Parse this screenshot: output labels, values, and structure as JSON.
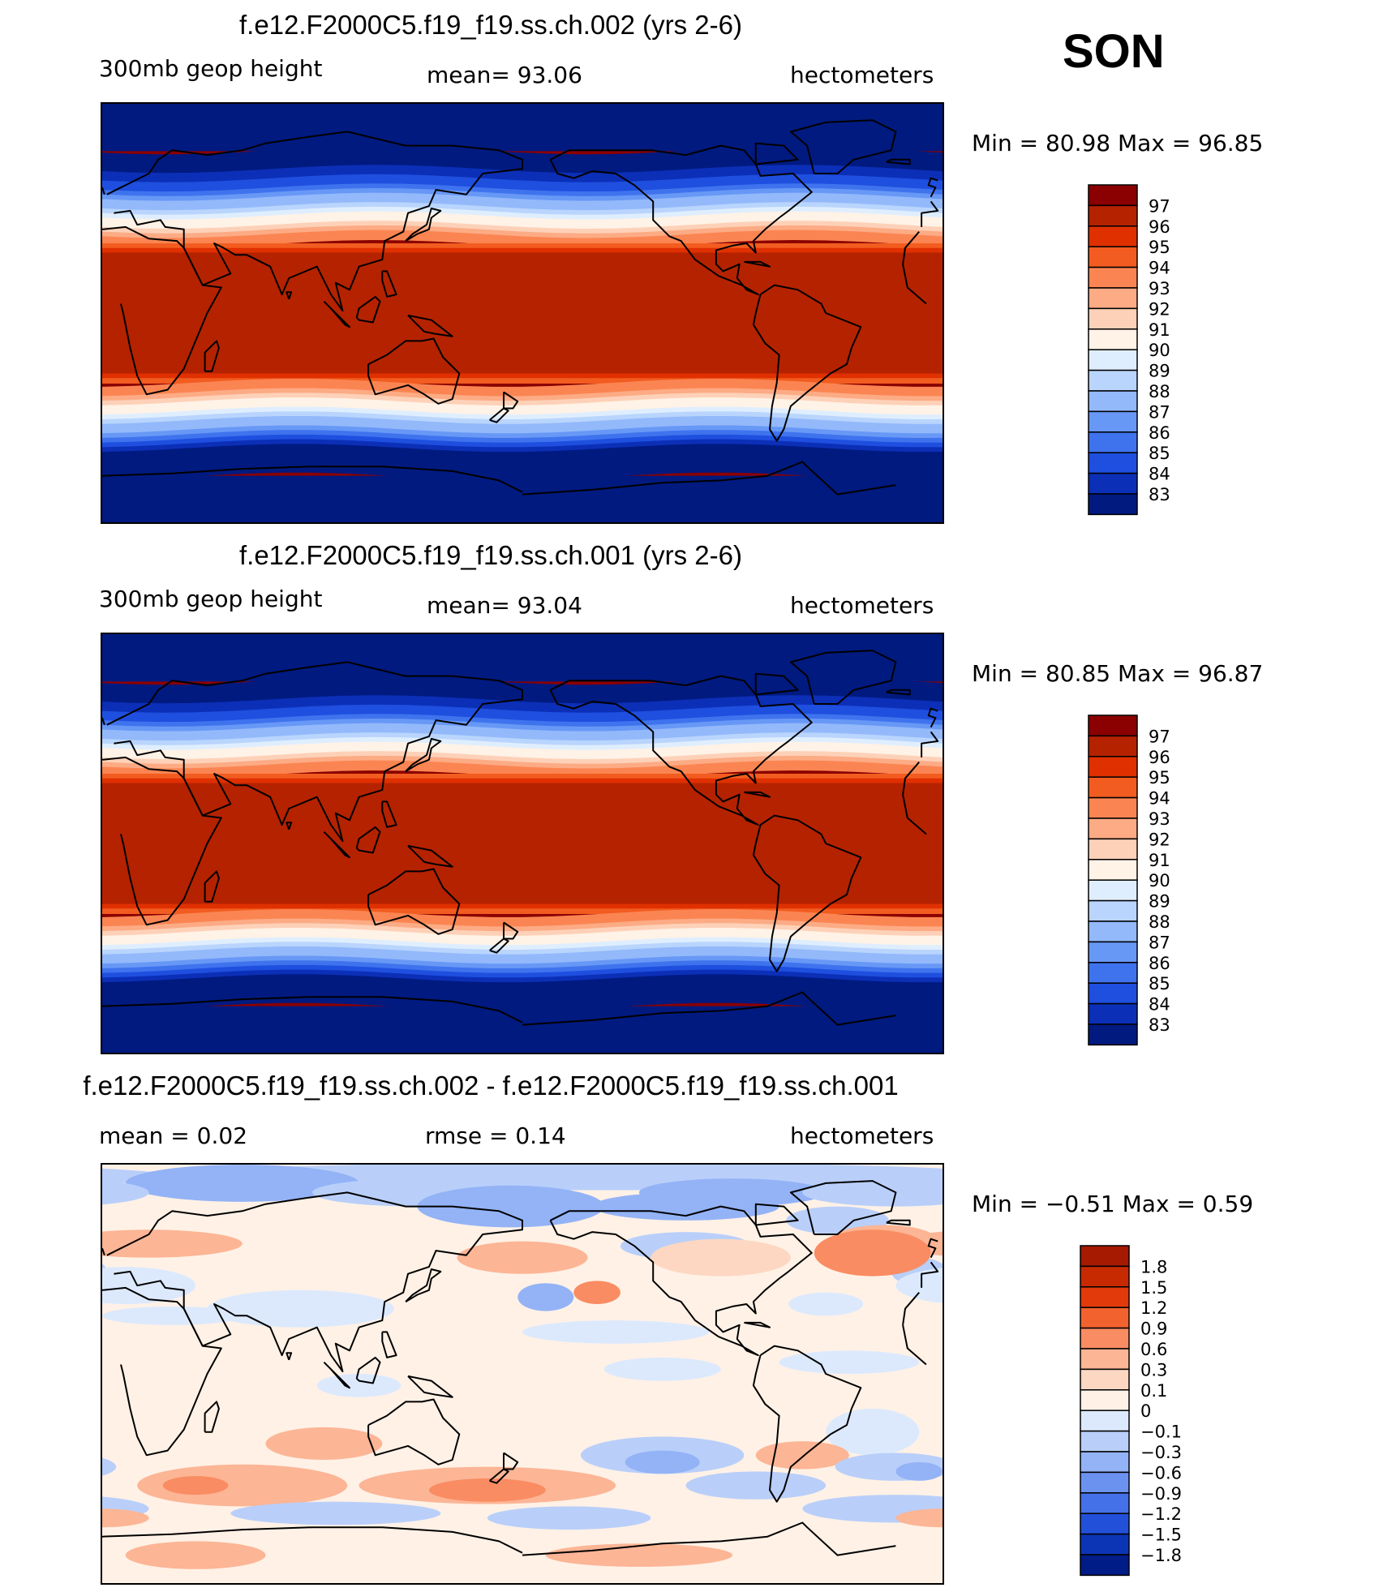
{
  "season": "SON",
  "chart_data": [
    {
      "type": "heatmap",
      "title": "f.e12.F2000C5.f19_f19.ss.ch.002 (yrs 2-6)",
      "left_label": "300mb  geop  height",
      "center_label": "mean=   93.06",
      "right_label": "hectometers",
      "minmax": "Min  =   80.98  Max  =   96.85",
      "min": 80.98,
      "max": 96.85,
      "mean": 93.06,
      "levels": [
        "97",
        "96",
        "95",
        "94",
        "93",
        "92",
        "91",
        "90",
        "89",
        "88",
        "87",
        "86",
        "85",
        "84",
        "83"
      ],
      "colors": [
        "#8b0000",
        "#b52200",
        "#e03000",
        "#f25c20",
        "#fb8552",
        "#fcab85",
        "#fdd1b8",
        "#fff2e6",
        "#dfeefe",
        "#b9d5fd",
        "#93b9fb",
        "#6898f6",
        "#3f73ee",
        "#1e4fdf",
        "#0c2fb7",
        "#001a80"
      ]
    },
    {
      "type": "heatmap",
      "title": "f.e12.F2000C5.f19_f19.ss.ch.001 (yrs 2-6)",
      "left_label": "300mb  geop  height",
      "center_label": "mean=   93.04",
      "right_label": "hectometers",
      "minmax": "Min  =   80.85  Max  =   96.87",
      "min": 80.85,
      "max": 96.87,
      "mean": 93.04,
      "levels": [
        "97",
        "96",
        "95",
        "94",
        "93",
        "92",
        "91",
        "90",
        "89",
        "88",
        "87",
        "86",
        "85",
        "84",
        "83"
      ],
      "colors": [
        "#8b0000",
        "#b52200",
        "#e03000",
        "#f25c20",
        "#fb8552",
        "#fcab85",
        "#fdd1b8",
        "#fff2e6",
        "#dfeefe",
        "#b9d5fd",
        "#93b9fb",
        "#6898f6",
        "#3f73ee",
        "#1e4fdf",
        "#0c2fb7",
        "#001a80"
      ]
    },
    {
      "type": "heatmap",
      "title": "f.e12.F2000C5.f19_f19.ss.ch.002 - f.e12.F2000C5.f19_f19.ss.ch.001",
      "left_label": "mean  =     0.02",
      "center_label": "rmse  =     0.14",
      "right_label": "hectometers",
      "minmax": "Min  =   −0.51  Max  =      0.59",
      "min": -0.51,
      "max": 0.59,
      "mean": 0.02,
      "rmse": 0.14,
      "levels": [
        "1.8",
        "1.5",
        "1.2",
        "0.9",
        "0.6",
        "0.3",
        "0.1",
        "0",
        "−0.1",
        "−0.3",
        "−0.6",
        "−0.9",
        "−1.2",
        "−1.5",
        "−1.8"
      ],
      "colors": [
        "#a51a00",
        "#c72a00",
        "#e23a0a",
        "#f2622e",
        "#f98c62",
        "#fcb595",
        "#fdd7c2",
        "#fff1e6",
        "#dce9fd",
        "#b9cffa",
        "#93b3f6",
        "#6c92f0",
        "#4571e8",
        "#2250d9",
        "#0c35b5",
        "#001c86"
      ]
    }
  ]
}
